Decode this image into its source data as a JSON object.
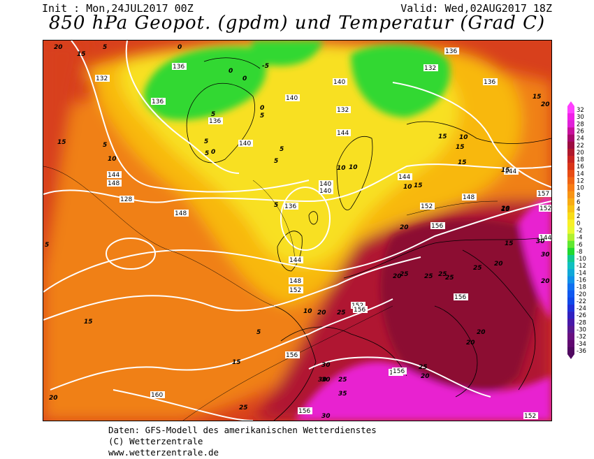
{
  "header": {
    "init": "Init : Mon,24JUL2017 00Z",
    "valid": "Valid: Wed,02AUG2017 18Z",
    "title": "850 hPa Geopot. (gpdm) und Temperatur (Grad C)"
  },
  "colors": {
    "hot_magenta": "#e820d0",
    "dark_red": "#b01830",
    "red": "#d8401c",
    "orange": "#f08018",
    "yellow_orange": "#f8b810",
    "yellow": "#f8e020",
    "green": "#30d830",
    "contour": "#ffffff"
  },
  "legend": {
    "labels": [
      "32",
      "30",
      "28",
      "26",
      "24",
      "22",
      "20",
      "18",
      "16",
      "14",
      "12",
      "10",
      "8",
      "6",
      "4",
      "2",
      "0",
      "-2",
      "-4",
      "-6",
      "-8",
      "-10",
      "-12",
      "-14",
      "-16",
      "-18",
      "-20",
      "-22",
      "-24",
      "-26",
      "-28",
      "-30",
      "-32",
      "-34",
      "-36"
    ],
    "colors": [
      "#ff40ff",
      "#f020e8",
      "#e020d8",
      "#c8109c",
      "#a8086c",
      "#9c0c40",
      "#b0182c",
      "#c82420",
      "#d83418",
      "#e84c14",
      "#f06414",
      "#f87c14",
      "#f89414",
      "#f8ac14",
      "#f8c414",
      "#f8dc18",
      "#f8f028",
      "#e8f830",
      "#b0f030",
      "#60e830",
      "#20d830",
      "#10c890",
      "#10c0c0",
      "#10a8d8",
      "#1090e8",
      "#1070f0",
      "#1058f0",
      "#1048e8",
      "#2030d8",
      "#3020c0",
      "#4818a8",
      "#581890",
      "#681080",
      "#600870",
      "#500860"
    ]
  },
  "map_labels": {
    "geopotential": [
      "136",
      "132",
      "136",
      "140",
      "140",
      "136",
      "140",
      "144",
      "148",
      "128",
      "132",
      "136",
      "132",
      "136",
      "140",
      "144",
      "140",
      "136",
      "144",
      "144",
      "148",
      "148",
      "152",
      "156",
      "152",
      "148",
      "144",
      "152",
      "156",
      "156",
      "156",
      "156",
      "160",
      "156",
      "156",
      "152",
      "157",
      "152",
      "144"
    ],
    "temperature": [
      "15",
      "5",
      "0",
      "5",
      "10",
      "0",
      "-5",
      "0",
      "5",
      "0",
      "5",
      "5",
      "5",
      "5",
      "5",
      "10",
      "10",
      "15",
      "15",
      "10",
      "15",
      "20",
      "25",
      "20",
      "25",
      "25",
      "25",
      "25",
      "20",
      "20",
      "20",
      "10",
      "20",
      "25",
      "30",
      "30",
      "35",
      "25",
      "20",
      "30",
      "15",
      "15",
      "15",
      "20",
      "25",
      "30",
      "15",
      "20",
      "15",
      "30",
      "30",
      "20",
      "15",
      "15",
      "25",
      "20",
      "5",
      "5",
      "0",
      "20",
      "15",
      "5",
      "10"
    ]
  },
  "footer": {
    "line1": "Daten: GFS-Modell des amerikanischen Wetterdienstes",
    "line2": "(C) Wetterzentrale",
    "line3": "www.wetterzentrale.de"
  }
}
